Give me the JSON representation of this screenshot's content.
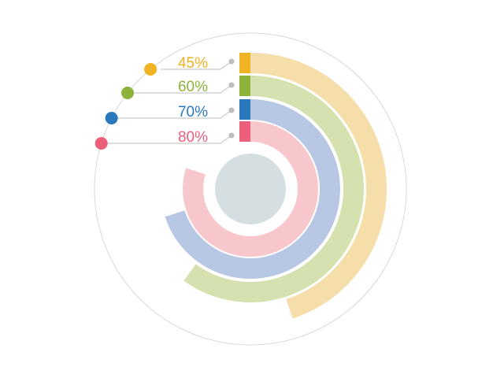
{
  "chart_data": {
    "type": "radial-bar",
    "unit": "%",
    "max": 100,
    "series": [
      {
        "label": "45%",
        "value": 45,
        "color": "#f0b323",
        "arc_color": "#f6deaa"
      },
      {
        "label": "60%",
        "value": 60,
        "color": "#8db33a",
        "arc_color": "#d6e1b0"
      },
      {
        "label": "70%",
        "value": 70,
        "color": "#2a79bd",
        "arc_color": "#b8c8e4"
      },
      {
        "label": "80%",
        "value": 80,
        "color": "#ec5f7a",
        "arc_color": "#f7c7cc"
      }
    ],
    "center_color": "#d5dfe1",
    "guide_color": "#d8d8d8",
    "leader_color": "#bdbdbd"
  }
}
